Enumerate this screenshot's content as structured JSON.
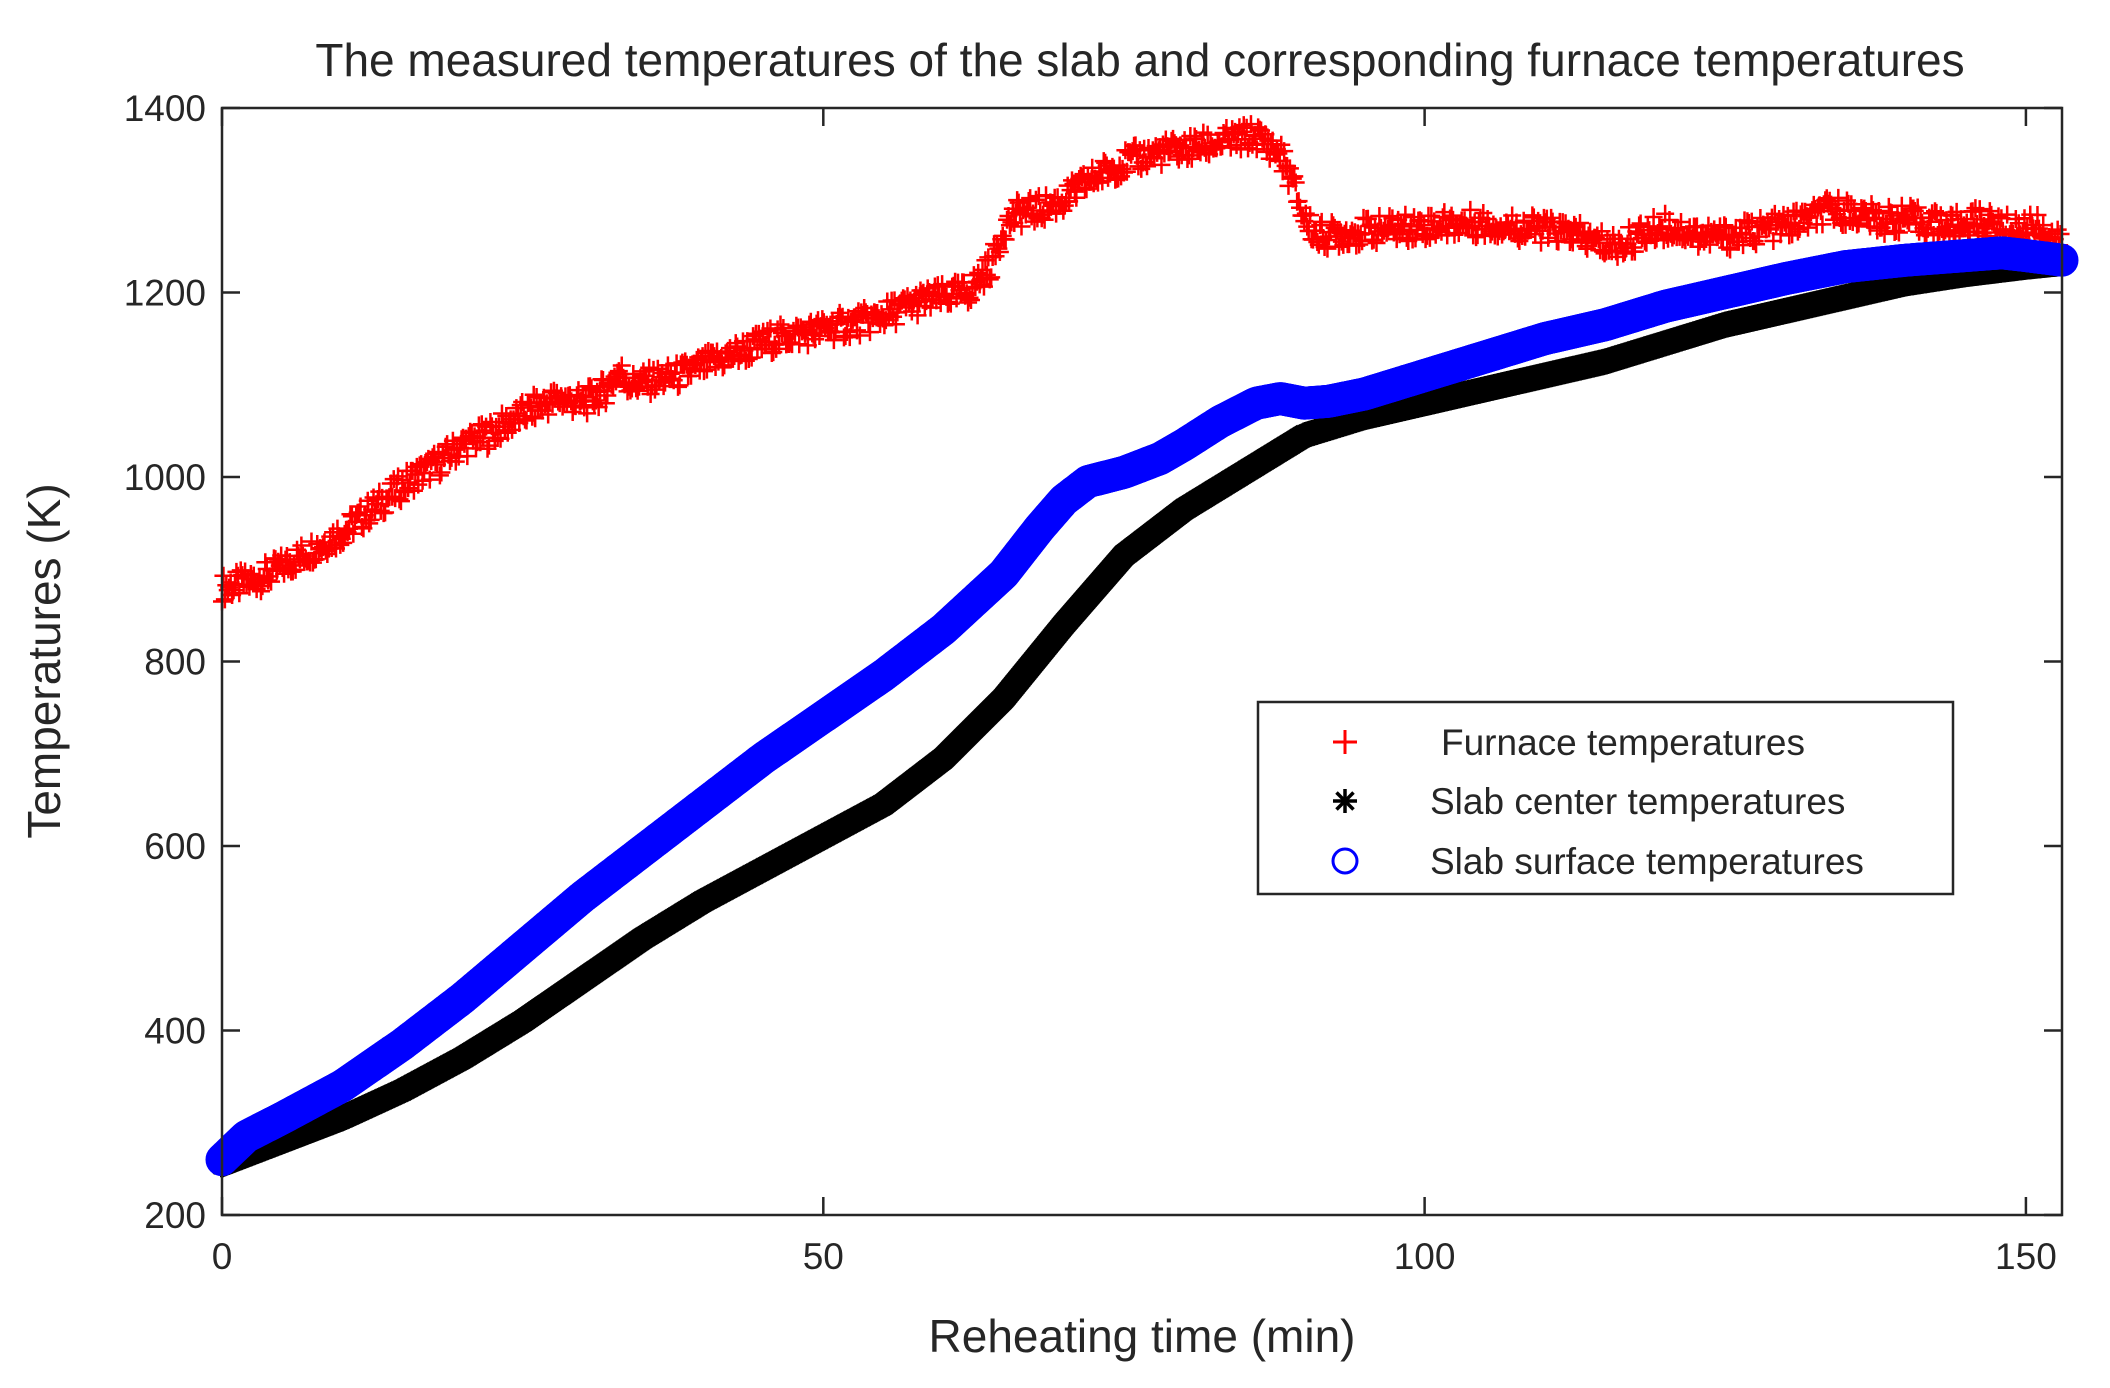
{
  "colors": {
    "furnace": "#ff0000",
    "center": "#000000",
    "surface": "#0000ff",
    "axis": "#262626",
    "background": "#ffffff"
  },
  "chart_data": {
    "type": "scatter",
    "title": "The measured temperatures of the slab and corresponding furnace temperatures",
    "xlabel": "Reheating time (min)",
    "ylabel": "Temperatures (K)",
    "xlim": [
      0,
      153
    ],
    "ylim": [
      200,
      1400
    ],
    "xticks": [
      0,
      50,
      100,
      150
    ],
    "yticks": [
      200,
      400,
      600,
      800,
      1000,
      1200,
      1400
    ],
    "grid": false,
    "legend_position": "right-center",
    "series": [
      {
        "name": "Furnace temperatures",
        "marker": "plus",
        "color": "#ff0000",
        "x": [
          0,
          2,
          4,
          6,
          8,
          10,
          12,
          14,
          16,
          18,
          20,
          22,
          24,
          26,
          28,
          30,
          32,
          33,
          34,
          36,
          38,
          40,
          42,
          44,
          46,
          48,
          50,
          52,
          54,
          56,
          58,
          60,
          62,
          64,
          65,
          66,
          68,
          70,
          72,
          74,
          76,
          78,
          80,
          82,
          84,
          86,
          88,
          89,
          90,
          91,
          92,
          94,
          96,
          98,
          100,
          102,
          104,
          106,
          108,
          110,
          112,
          114,
          116,
          118,
          120,
          122,
          124,
          126,
          128,
          130,
          132,
          134,
          136,
          138,
          140,
          142,
          144,
          146,
          148,
          150,
          151,
          152,
          153
        ],
        "y": [
          880,
          885,
          895,
          910,
          925,
          940,
          960,
          980,
          1000,
          1015,
          1035,
          1045,
          1060,
          1075,
          1085,
          1080,
          1095,
          1115,
          1100,
          1105,
          1110,
          1120,
          1130,
          1140,
          1150,
          1155,
          1160,
          1165,
          1170,
          1180,
          1190,
          1195,
          1200,
          1230,
          1270,
          1285,
          1290,
          1300,
          1320,
          1335,
          1345,
          1352,
          1355,
          1360,
          1365,
          1370,
          1350,
          1320,
          1280,
          1262,
          1262,
          1265,
          1268,
          1270,
          1272,
          1274,
          1275,
          1273,
          1270,
          1268,
          1265,
          1255,
          1250,
          1262,
          1272,
          1265,
          1260,
          1262,
          1268,
          1272,
          1280,
          1290,
          1285,
          1278,
          1280,
          1275,
          1272,
          1278,
          1270,
          1268,
          1275,
          1260,
          1250
        ]
      },
      {
        "name": "Slab center temperatures",
        "marker": "asterisk",
        "color": "#000000",
        "x": [
          0,
          2,
          5,
          10,
          15,
          20,
          25,
          30,
          35,
          40,
          45,
          50,
          55,
          60,
          65,
          70,
          75,
          80,
          85,
          90,
          95,
          100,
          105,
          110,
          115,
          120,
          125,
          130,
          135,
          140,
          145,
          150,
          153
        ],
        "y": [
          255,
          265,
          280,
          305,
          335,
          370,
          410,
          455,
          500,
          540,
          575,
          610,
          645,
          695,
          760,
          840,
          915,
          965,
          1005,
          1045,
          1065,
          1080,
          1095,
          1110,
          1125,
          1145,
          1165,
          1180,
          1195,
          1210,
          1220,
          1228,
          1232
        ]
      },
      {
        "name": "Slab surface temperatures",
        "marker": "circle",
        "color": "#0000ff",
        "x": [
          0,
          2,
          5,
          10,
          15,
          20,
          25,
          30,
          35,
          40,
          45,
          50,
          55,
          60,
          65,
          68,
          70,
          72,
          75,
          78,
          80,
          83,
          86,
          88,
          90,
          92,
          95,
          100,
          105,
          110,
          115,
          120,
          125,
          130,
          135,
          140,
          145,
          148,
          150,
          153
        ],
        "y": [
          260,
          285,
          305,
          340,
          385,
          435,
          490,
          545,
          595,
          645,
          695,
          740,
          785,
          835,
          895,
          945,
          975,
          995,
          1005,
          1020,
          1035,
          1060,
          1080,
          1085,
          1080,
          1082,
          1090,
          1110,
          1130,
          1150,
          1165,
          1185,
          1200,
          1215,
          1228,
          1235,
          1240,
          1243,
          1240,
          1235
        ]
      }
    ]
  }
}
